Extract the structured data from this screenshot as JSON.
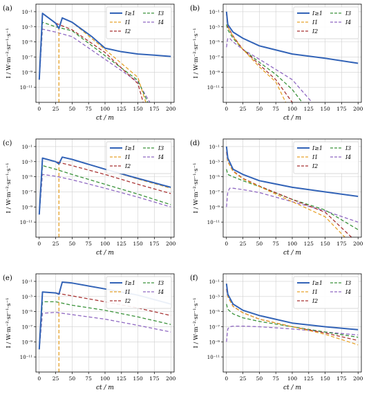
{
  "figure": {
    "ylabel": "I / W·m⁻²·sr⁻¹·s⁻¹",
    "xlabel": "ct / m"
  },
  "colors": {
    "I_ge1": "#3263b7",
    "I_1": "#e6a22a",
    "I_2": "#a83232",
    "I_3": "#3a923a",
    "I_4": "#8f68c2",
    "grid": "#cfcfcf"
  },
  "legend_labels": [
    "I≥1",
    "I1",
    "I2",
    "I3",
    "I4"
  ],
  "chart_data": [
    {
      "panel_label": "(a)",
      "type": "line",
      "ylog": true,
      "ylim": [
        1e-13,
        1
      ],
      "xlim": [
        -5,
        205
      ],
      "xticks": [
        0,
        25,
        50,
        75,
        100,
        125,
        150,
        175,
        200
      ],
      "yticks": [
        "10⁻¹",
        "10⁻³",
        "10⁻⁵",
        "10⁻⁷",
        "10⁻⁹",
        "10⁻¹¹"
      ],
      "legend": "top-right",
      "grid": true,
      "series": [
        {
          "name": "I≥1",
          "x": [
            0,
            5,
            25,
            30,
            35,
            50,
            80,
            100,
            125,
            150,
            175,
            200
          ],
          "y": [
            1e-10,
            0.06,
            0.003,
            0.0006,
            0.015,
            0.004,
            5e-05,
            1.5e-06,
            5e-07,
            2.5e-07,
            1.8e-07,
            1.2e-07
          ]
        },
        {
          "name": "I1",
          "x": [
            30,
            30,
            35,
            50,
            100,
            150,
            162
          ],
          "y": [
            1e-13,
            0.001,
            0.015,
            0.004,
            1e-06,
            2e-10,
            1e-13
          ]
        },
        {
          "name": "I2",
          "x": [
            0,
            5,
            25,
            50,
            100,
            150,
            158
          ],
          "y": [
            1e-10,
            0.06,
            0.003,
            0.0004,
            4e-07,
            3e-11,
            1e-13
          ]
        },
        {
          "name": "I3",
          "x": [
            0,
            5,
            25,
            50,
            100,
            150,
            165
          ],
          "y": [
            1e-10,
            0.004,
            0.001,
            0.0003,
            1.5e-07,
            8e-11,
            1e-13
          ]
        },
        {
          "name": "I4",
          "x": [
            0,
            5,
            25,
            50,
            100,
            150,
            168
          ],
          "y": [
            1e-10,
            0.0005,
            0.0002,
            5e-05,
            5e-08,
            5e-11,
            1e-13
          ]
        }
      ]
    },
    {
      "panel_label": "(b)",
      "type": "line",
      "ylog": true,
      "ylim": [
        1e-13,
        1
      ],
      "xlim": [
        -5,
        205
      ],
      "xticks": [
        0,
        25,
        50,
        75,
        100,
        125,
        150,
        175,
        200
      ],
      "yticks": [
        "10⁻¹",
        "10⁻³",
        "10⁻⁵",
        "10⁻⁷",
        "10⁻⁹",
        "10⁻¹¹"
      ],
      "legend": "top-right",
      "grid": true,
      "series": [
        {
          "name": "I≥1",
          "x": [
            0,
            2,
            10,
            25,
            50,
            100,
            150,
            200
          ],
          "y": [
            0.1,
            0.002,
            0.0002,
            3e-05,
            3e-06,
            2.5e-07,
            7e-08,
            1.5e-08
          ]
        },
        {
          "name": "I1",
          "x": [
            0,
            2,
            10,
            25,
            50,
            75,
            90
          ],
          "y": [
            0.1,
            0.001,
            5e-05,
            1e-06,
            5e-09,
            5e-11,
            1e-13
          ]
        },
        {
          "name": "I2",
          "x": [
            0,
            2,
            10,
            25,
            50,
            75,
            100
          ],
          "y": [
            0.05,
            0.001,
            6e-05,
            1e-06,
            1e-08,
            1e-10,
            1e-13
          ]
        },
        {
          "name": "I3",
          "x": [
            0,
            2,
            10,
            25,
            50,
            75,
            100,
            115
          ],
          "y": [
            0.002,
            0.0004,
            3e-05,
            1e-06,
            2e-08,
            5e-10,
            5e-12,
            1e-13
          ]
        },
        {
          "name": "I4",
          "x": [
            0,
            2,
            5,
            10,
            25,
            50,
            100,
            130
          ],
          "y": [
            2e-06,
            3e-05,
            3e-05,
            1e-05,
            1e-06,
            5e-08,
            1e-10,
            1e-13
          ]
        }
      ]
    },
    {
      "panel_label": "(c)",
      "type": "line",
      "ylog": true,
      "ylim": [
        1e-13,
        1
      ],
      "xlim": [
        -5,
        205
      ],
      "xticks": [
        0,
        25,
        50,
        75,
        100,
        125,
        150,
        175,
        200
      ],
      "yticks": [
        "10⁻¹",
        "10⁻³",
        "10⁻⁵",
        "10⁻⁷",
        "10⁻⁹",
        "10⁻¹¹"
      ],
      "legend": "top-right",
      "grid": true,
      "series": [
        {
          "name": "I≥1",
          "x": [
            0,
            5,
            25,
            30,
            35,
            50,
            100,
            150,
            200
          ],
          "y": [
            1e-10,
            0.003,
            0.001,
            0.0005,
            0.004,
            0.002,
            0.0001,
            6e-06,
            4e-07
          ]
        },
        {
          "name": "I1",
          "x": [
            30,
            30,
            35,
            50,
            100,
            150,
            200
          ],
          "y": [
            1e-13,
            0.0005,
            0.004,
            0.002,
            0.0001,
            5e-06,
            3e-07
          ]
        },
        {
          "name": "I2",
          "x": [
            0,
            5,
            25,
            50,
            100,
            150,
            200
          ],
          "y": [
            1e-10,
            0.003,
            0.001,
            0.0003,
            2e-05,
            1e-06,
            6e-08
          ]
        },
        {
          "name": "I3",
          "x": [
            0,
            5,
            25,
            50,
            100,
            150,
            200
          ],
          "y": [
            1e-10,
            0.0003,
            0.0001,
            2e-05,
            1e-06,
            5e-08,
            2e-09
          ]
        },
        {
          "name": "I4",
          "x": [
            0,
            5,
            25,
            50,
            100,
            150,
            200
          ],
          "y": [
            1e-10,
            2e-05,
            1.2e-05,
            4e-06,
            3e-07,
            2e-08,
            1e-09
          ]
        }
      ]
    },
    {
      "panel_label": "(d)",
      "type": "line",
      "ylog": true,
      "ylim": [
        1e-13,
        1
      ],
      "xlim": [
        -5,
        205
      ],
      "xticks": [
        0,
        25,
        50,
        75,
        100,
        125,
        150,
        175,
        200
      ],
      "yticks": [
        "10⁻¹",
        "10⁻³",
        "10⁻⁵",
        "10⁻⁷",
        "10⁻⁹",
        "10⁻¹¹"
      ],
      "legend": "top-right",
      "grid": true,
      "series": [
        {
          "name": "I≥1",
          "x": [
            0,
            2,
            10,
            25,
            50,
            100,
            150,
            200
          ],
          "y": [
            0.1,
            0.003,
            0.0001,
            2e-05,
            3e-06,
            4e-07,
            1e-07,
            2.5e-08
          ]
        },
        {
          "name": "I1",
          "x": [
            0,
            2,
            10,
            25,
            50,
            100,
            150,
            180
          ],
          "y": [
            0.1,
            0.001,
            5e-05,
            5e-06,
            5e-07,
            5e-09,
            5e-11,
            1e-13
          ]
        },
        {
          "name": "I2",
          "x": [
            0,
            2,
            10,
            25,
            50,
            100,
            150,
            190
          ],
          "y": [
            0.02,
            0.001,
            6e-05,
            6e-06,
            6e-07,
            1e-08,
            2e-10,
            1e-13
          ]
        },
        {
          "name": "I3",
          "x": [
            0,
            2,
            10,
            25,
            50,
            100,
            150,
            200
          ],
          "y": [
            0.0001,
            2e-05,
            1e-05,
            3e-06,
            5e-07,
            1e-08,
            4e-10,
            1e-12
          ]
        },
        {
          "name": "I4",
          "x": [
            0,
            2,
            5,
            10,
            25,
            50,
            100,
            150,
            200
          ],
          "y": [
            1e-09,
            1e-07,
            3e-07,
            3e-07,
            2e-07,
            8e-08,
            5e-09,
            3e-10,
            1e-11
          ]
        }
      ]
    },
    {
      "panel_label": "(e)",
      "type": "line",
      "ylog": true,
      "ylim": [
        1e-13,
        1
      ],
      "xlim": [
        -5,
        205
      ],
      "xticks": [
        0,
        25,
        50,
        75,
        100,
        125,
        150,
        175,
        200
      ],
      "yticks": [
        "10⁻¹",
        "10⁻³",
        "10⁻⁵",
        "10⁻⁷",
        "10⁻⁹",
        "10⁻¹¹"
      ],
      "legend": "top-right",
      "grid": true,
      "series": [
        {
          "name": "I≥1",
          "x": [
            0,
            5,
            25,
            30,
            35,
            50,
            100,
            150,
            200
          ],
          "y": [
            1e-10,
            0.004,
            0.003,
            0.002,
            0.08,
            0.06,
            0.01,
            0.0015,
            0.0001
          ]
        },
        {
          "name": "I1",
          "x": [
            30,
            30,
            35,
            50,
            100,
            150,
            200
          ],
          "y": [
            1e-13,
            0.002,
            0.08,
            0.06,
            0.01,
            0.0015,
            0.0001
          ]
        },
        {
          "name": "I2",
          "x": [
            0,
            5,
            25,
            50,
            100,
            150,
            200
          ],
          "y": [
            1e-10,
            0.004,
            0.003,
            0.0012,
            0.0002,
            3e-05,
            3e-06
          ]
        },
        {
          "name": "I3",
          "x": [
            0,
            5,
            25,
            50,
            100,
            150,
            200
          ],
          "y": [
            1e-10,
            0.0002,
            0.0002,
            7e-05,
            1.5e-05,
            2e-06,
            2e-07
          ]
        },
        {
          "name": "I4",
          "x": [
            0,
            5,
            25,
            50,
            100,
            150,
            200
          ],
          "y": [
            1e-10,
            6e-06,
            8e-06,
            4e-06,
            1e-06,
            1.5e-07,
            2e-08
          ]
        }
      ]
    },
    {
      "panel_label": "(f)",
      "type": "line",
      "ylog": true,
      "ylim": [
        1e-13,
        1
      ],
      "xlim": [
        -5,
        205
      ],
      "xticks": [
        0,
        25,
        50,
        75,
        100,
        125,
        150,
        175,
        200
      ],
      "yticks": [
        "10⁻¹",
        "10⁻³",
        "10⁻⁵",
        "10⁻⁷",
        "10⁻⁹",
        "10⁻¹¹"
      ],
      "legend": "top-right",
      "grid": true,
      "series": [
        {
          "name": "I≥1",
          "x": [
            0,
            2,
            10,
            25,
            50,
            100,
            150,
            200
          ],
          "y": [
            0.05,
            0.002,
            0.0001,
            1.5e-05,
            3e-06,
            3e-07,
            1e-07,
            4e-08
          ]
        },
        {
          "name": "I1",
          "x": [
            0,
            2,
            10,
            25,
            50,
            100,
            150,
            200
          ],
          "y": [
            0.05,
            0.001,
            5e-05,
            7e-06,
            1e-06,
            1e-07,
            1e-08,
            4e-10
          ]
        },
        {
          "name": "I2",
          "x": [
            0,
            2,
            10,
            25,
            50,
            100,
            150,
            200
          ],
          "y": [
            0.01,
            0.001,
            5e-05,
            7e-06,
            1e-06,
            1e-07,
            1.5e-08,
            1.5e-09
          ]
        },
        {
          "name": "I3",
          "x": [
            0,
            2,
            10,
            25,
            50,
            100,
            150,
            200
          ],
          "y": [
            0.0001,
            2e-05,
            5e-06,
            1.5e-06,
            5e-07,
            1e-07,
            2e-08,
            4e-09
          ]
        },
        {
          "name": "I4",
          "x": [
            0,
            2,
            5,
            10,
            25,
            50,
            100,
            150,
            200
          ],
          "y": [
            1e-09,
            5e-08,
            1e-07,
            1.2e-07,
            1.2e-07,
            1e-07,
            5e-08,
            2e-08,
            8e-09
          ]
        }
      ]
    }
  ]
}
